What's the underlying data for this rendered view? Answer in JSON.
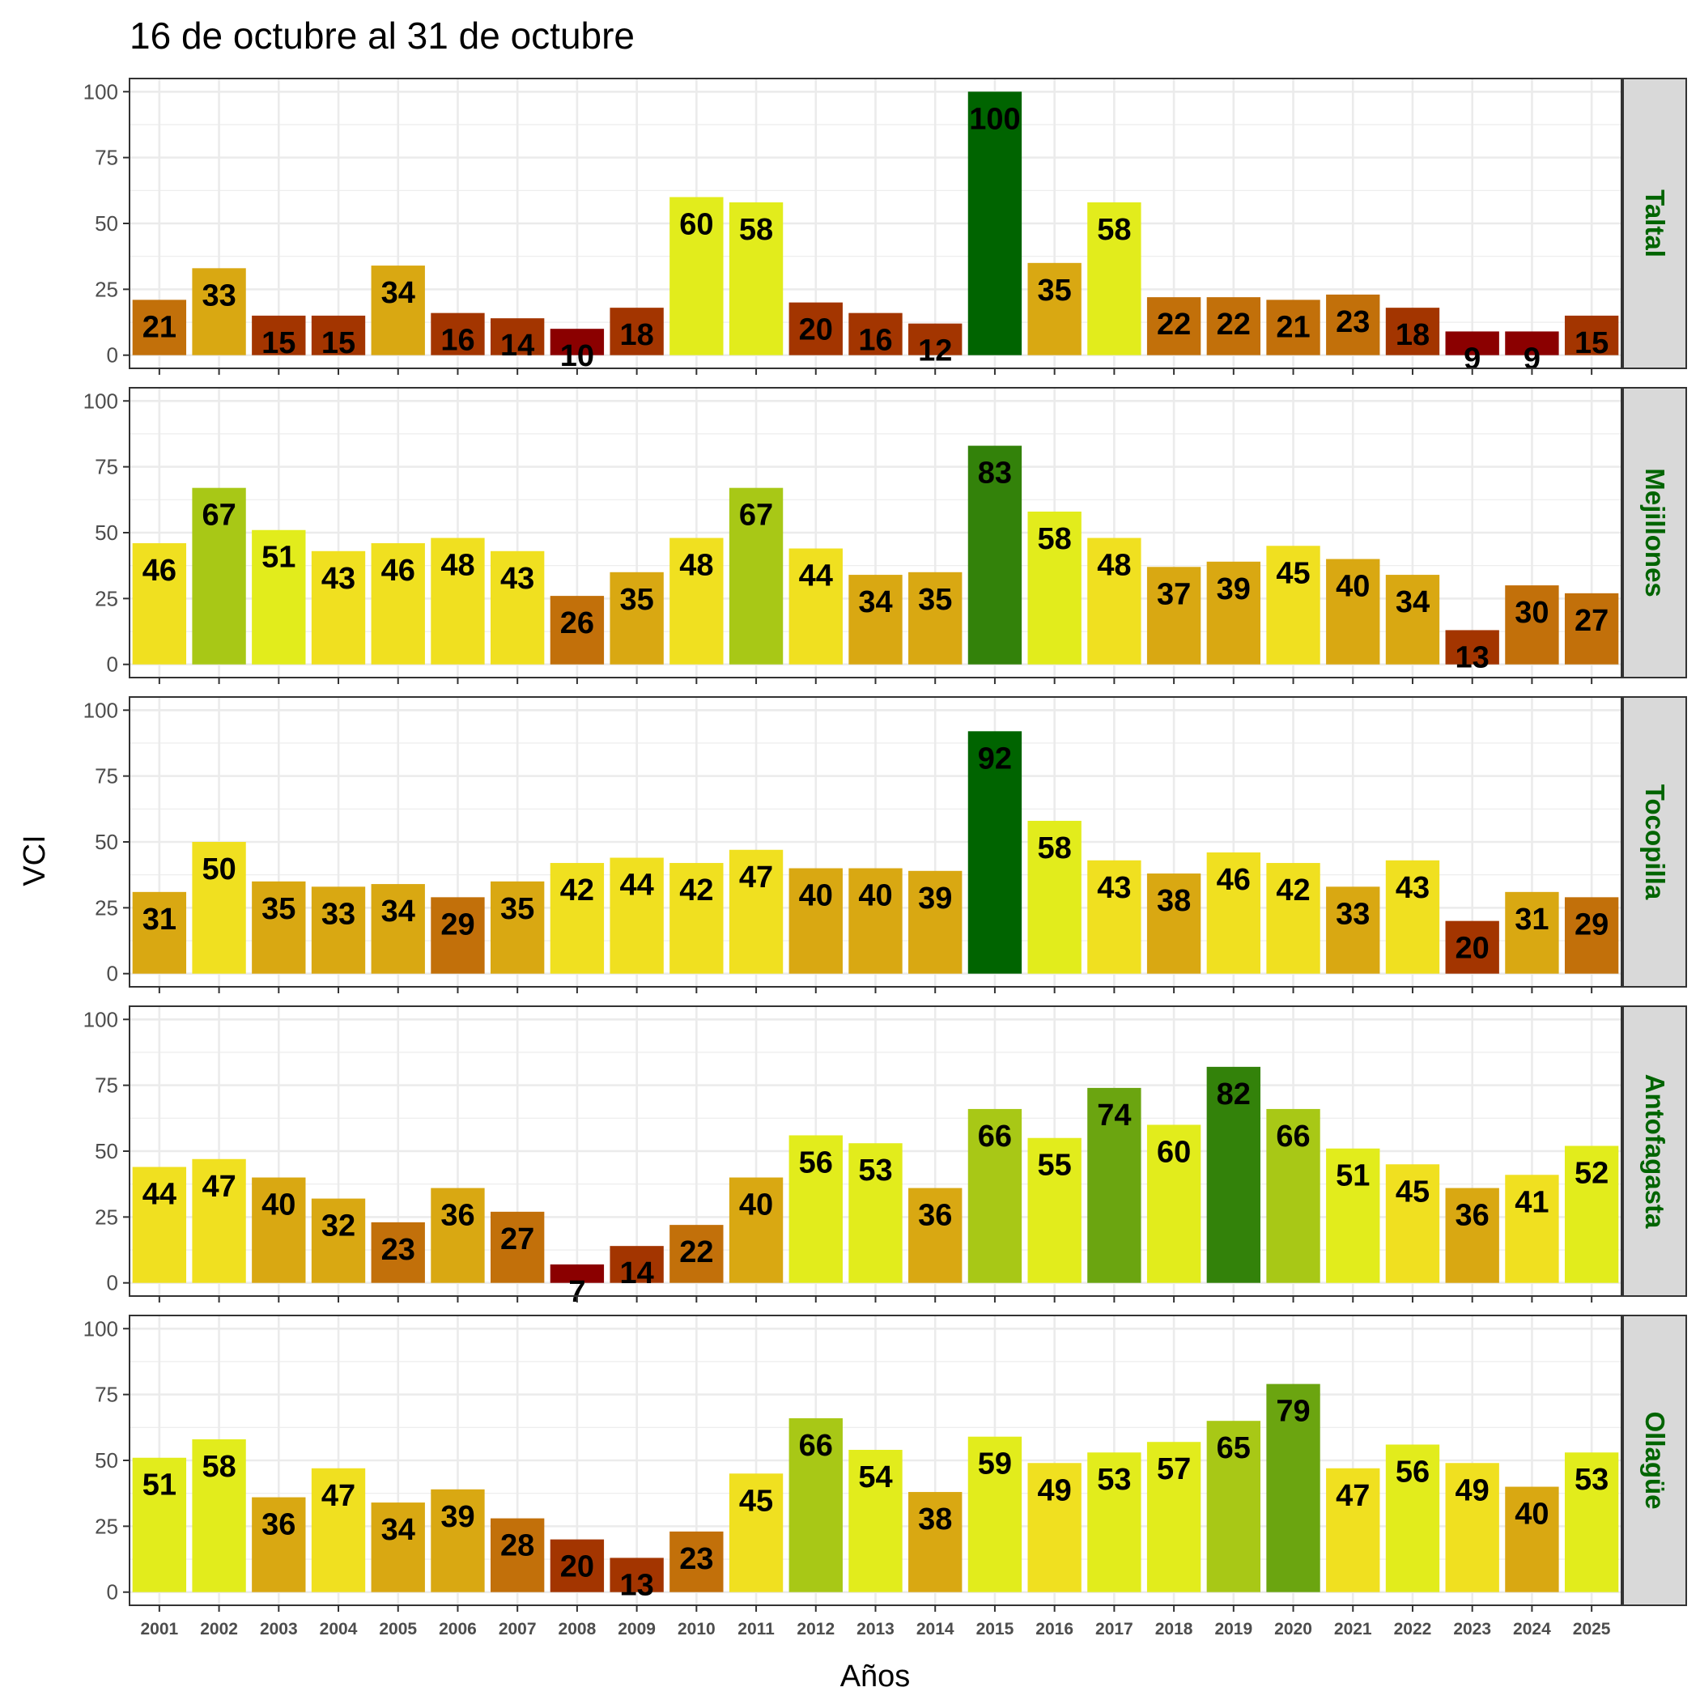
{
  "chart_data": {
    "type": "bar",
    "title": "16 de octubre al 31 de octubre",
    "xlabel": "Años",
    "ylabel": "VCI",
    "ylim": [
      0,
      100
    ],
    "yticks": [
      0,
      25,
      50,
      75,
      100
    ],
    "grid": true,
    "categories": [
      "2001",
      "2002",
      "2003",
      "2004",
      "2005",
      "2006",
      "2007",
      "2008",
      "2009",
      "2010",
      "2011",
      "2012",
      "2013",
      "2014",
      "2015",
      "2016",
      "2017",
      "2018",
      "2019",
      "2020",
      "2021",
      "2022",
      "2023",
      "2024",
      "2025"
    ],
    "series": [
      {
        "name": "Taltal",
        "values": [
          21,
          33,
          15,
          15,
          34,
          16,
          14,
          10,
          18,
          60,
          58,
          20,
          16,
          12,
          100,
          35,
          58,
          22,
          22,
          21,
          23,
          18,
          9,
          9,
          15
        ]
      },
      {
        "name": "Mejillones",
        "values": [
          46,
          67,
          51,
          43,
          46,
          48,
          43,
          26,
          35,
          48,
          67,
          44,
          34,
          35,
          83,
          58,
          48,
          37,
          39,
          45,
          40,
          34,
          13,
          30,
          27
        ]
      },
      {
        "name": "Tocopilla",
        "values": [
          31,
          50,
          35,
          33,
          34,
          29,
          35,
          42,
          44,
          42,
          47,
          40,
          40,
          39,
          92,
          58,
          43,
          38,
          46,
          42,
          33,
          43,
          20,
          31,
          29
        ]
      },
      {
        "name": "Antofagasta",
        "values": [
          44,
          47,
          40,
          32,
          23,
          36,
          27,
          7,
          14,
          22,
          40,
          56,
          53,
          36,
          66,
          55,
          74,
          60,
          82,
          66,
          51,
          45,
          36,
          41,
          52
        ]
      },
      {
        "name": "Ollagüe",
        "values": [
          51,
          58,
          36,
          47,
          34,
          39,
          28,
          20,
          13,
          23,
          45,
          66,
          54,
          38,
          59,
          49,
          53,
          57,
          65,
          79,
          47,
          56,
          49,
          40,
          53
        ]
      }
    ],
    "color_scale": [
      {
        "max": 10,
        "color": "#8B0000"
      },
      {
        "max": 20,
        "color": "#A33500"
      },
      {
        "max": 30,
        "color": "#C2700A"
      },
      {
        "max": 40,
        "color": "#D9A812"
      },
      {
        "max": 50,
        "color": "#F0E020"
      },
      {
        "max": 60,
        "color": "#E2EC1C"
      },
      {
        "max": 70,
        "color": "#A8C816"
      },
      {
        "max": 80,
        "color": "#6BA510"
      },
      {
        "max": 90,
        "color": "#33820A"
      },
      {
        "max": 100,
        "color": "#006400"
      }
    ],
    "colors": {
      "panel_border": "#333333",
      "grid": "#ebebeb",
      "strip_fill": "#d9d9d9",
      "strip_text": "#006400"
    }
  }
}
